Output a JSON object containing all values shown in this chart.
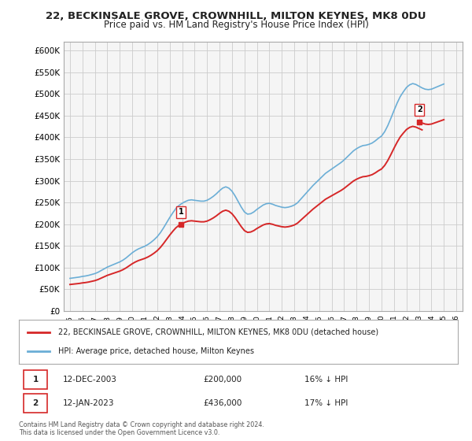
{
  "title_line1": "22, BECKINSALE GROVE, CROWNHILL, MILTON KEYNES, MK8 0DU",
  "title_line2": "Price paid vs. HM Land Registry's House Price Index (HPI)",
  "ylabel": "",
  "background_color": "#ffffff",
  "grid_color": "#cccccc",
  "plot_bg": "#f5f5f5",
  "hpi_x": [
    1995,
    1995.25,
    1995.5,
    1995.75,
    1996,
    1996.25,
    1996.5,
    1996.75,
    1997,
    1997.25,
    1997.5,
    1997.75,
    1998,
    1998.25,
    1998.5,
    1998.75,
    1999,
    1999.25,
    1999.5,
    1999.75,
    2000,
    2000.25,
    2000.5,
    2000.75,
    2001,
    2001.25,
    2001.5,
    2001.75,
    2002,
    2002.25,
    2002.5,
    2002.75,
    2003,
    2003.25,
    2003.5,
    2003.75,
    2004,
    2004.25,
    2004.5,
    2004.75,
    2005,
    2005.25,
    2005.5,
    2005.75,
    2006,
    2006.25,
    2006.5,
    2006.75,
    2007,
    2007.25,
    2007.5,
    2007.75,
    2008,
    2008.25,
    2008.5,
    2008.75,
    2009,
    2009.25,
    2009.5,
    2009.75,
    2010,
    2010.25,
    2010.5,
    2010.75,
    2011,
    2011.25,
    2011.5,
    2011.75,
    2012,
    2012.25,
    2012.5,
    2012.75,
    2013,
    2013.25,
    2013.5,
    2013.75,
    2014,
    2014.25,
    2014.5,
    2014.75,
    2015,
    2015.25,
    2015.5,
    2015.75,
    2016,
    2016.25,
    2016.5,
    2016.75,
    2017,
    2017.25,
    2017.5,
    2017.75,
    2018,
    2018.25,
    2018.5,
    2018.75,
    2019,
    2019.25,
    2019.5,
    2019.75,
    2020,
    2020.25,
    2020.5,
    2020.75,
    2021,
    2021.25,
    2021.5,
    2021.75,
    2022,
    2022.25,
    2022.5,
    2022.75,
    2023,
    2023.25,
    2023.5,
    2023.75,
    2024,
    2024.25,
    2024.5,
    2024.75,
    2025
  ],
  "hpi_y": [
    75000,
    76000,
    77000,
    78000,
    79500,
    80500,
    82000,
    84000,
    86000,
    89000,
    93000,
    97000,
    101000,
    104000,
    107000,
    110000,
    113000,
    117000,
    122000,
    128000,
    134000,
    139000,
    143000,
    146000,
    149000,
    153000,
    158000,
    164000,
    171000,
    180000,
    191000,
    203000,
    215000,
    226000,
    236000,
    243000,
    248000,
    252000,
    255000,
    256000,
    255000,
    254000,
    253000,
    253000,
    255000,
    259000,
    264000,
    270000,
    277000,
    283000,
    286000,
    283000,
    276000,
    265000,
    252000,
    239000,
    228000,
    223000,
    224000,
    228000,
    234000,
    239000,
    244000,
    247000,
    248000,
    246000,
    243000,
    241000,
    239000,
    238000,
    239000,
    241000,
    244000,
    249000,
    257000,
    265000,
    273000,
    281000,
    289000,
    296000,
    303000,
    310000,
    317000,
    322000,
    327000,
    332000,
    337000,
    342000,
    348000,
    355000,
    362000,
    369000,
    374000,
    378000,
    381000,
    382000,
    384000,
    387000,
    392000,
    398000,
    403000,
    413000,
    427000,
    444000,
    462000,
    479000,
    494000,
    505000,
    515000,
    521000,
    524000,
    522000,
    518000,
    514000,
    511000,
    510000,
    511000,
    514000,
    517000,
    520000,
    523000
  ],
  "purchase1_x": 2003.92,
  "purchase1_y": 200000,
  "purchase1_label": "1",
  "purchase1_date": "12-DEC-2003",
  "purchase1_price": "£200,000",
  "purchase1_hpi": "16% ↓ HPI",
  "purchase2_x": 2023.04,
  "purchase2_y": 436000,
  "purchase2_label": "2",
  "purchase2_date": "12-JAN-2023",
  "purchase2_price": "£436,000",
  "purchase2_hpi": "17% ↓ HPI",
  "hpi_color": "#6baed6",
  "price_color": "#d62728",
  "marker_color": "#d62728",
  "xlim": [
    1994.5,
    2026.5
  ],
  "ylim": [
    0,
    620000
  ],
  "yticks": [
    0,
    50000,
    100000,
    150000,
    200000,
    250000,
    300000,
    350000,
    400000,
    450000,
    500000,
    550000,
    600000
  ],
  "xtick_labels": [
    "1995",
    "1996",
    "1997",
    "1998",
    "1999",
    "2000",
    "2001",
    "2002",
    "2003",
    "2004",
    "2005",
    "2006",
    "2007",
    "2008",
    "2009",
    "2010",
    "2011",
    "2012",
    "2013",
    "2014",
    "2015",
    "2016",
    "2017",
    "2018",
    "2019",
    "2020",
    "2021",
    "2022",
    "2023",
    "2024",
    "2025",
    "2026"
  ],
  "legend_line1": "22, BECKINSALE GROVE, CROWNHILL, MILTON KEYNES, MK8 0DU (detached house)",
  "legend_line2": "HPI: Average price, detached house, Milton Keynes",
  "footnote": "Contains HM Land Registry data © Crown copyright and database right 2024.\nThis data is licensed under the Open Government Licence v3.0."
}
